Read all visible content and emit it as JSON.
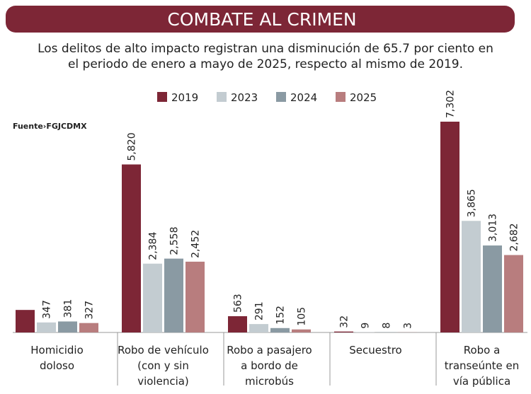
{
  "chart_data": {
    "type": "bar",
    "title": "COMBATE AL CRIMEN",
    "subtitle": [
      "Los delitos de alto impacto registran una disminución de 65.7 por ciento en",
      "el periodo de enero a mayo de 2025, respecto al mismo de 2019."
    ],
    "source": "Fuente›FGJCDMX",
    "categories": [
      [
        "Homicidio",
        "doloso"
      ],
      [
        "Robo de vehículo",
        "(con y sin",
        "violencia)"
      ],
      [
        "Robo a pasajero",
        "a bordo de",
        "microbús"
      ],
      [
        "Secuestro"
      ],
      [
        "Robo a",
        "transeúnte en",
        "vía pública"
      ]
    ],
    "series": [
      {
        "name": "2019",
        "color": "#7d2636",
        "values": [
          780,
          5820,
          563,
          32,
          7302
        ],
        "value_labels": [
          null,
          "5,820",
          "563",
          "32",
          "7,302"
        ]
      },
      {
        "name": "2023",
        "color": "#c3ccd1",
        "values": [
          347,
          2384,
          291,
          9,
          3865
        ],
        "value_labels": [
          "347",
          "2,384",
          "291",
          "9",
          "3,865"
        ]
      },
      {
        "name": "2024",
        "color": "#8a9aa3",
        "values": [
          381,
          2558,
          152,
          8,
          3013
        ],
        "value_labels": [
          "381",
          "2,558",
          "152",
          "8",
          "3,013"
        ]
      },
      {
        "name": "2025",
        "color": "#b87d7e",
        "values": [
          327,
          2452,
          105,
          3,
          2682
        ],
        "value_labels": [
          "327",
          "2,452",
          "105",
          "3",
          "2,682"
        ]
      }
    ]
  }
}
